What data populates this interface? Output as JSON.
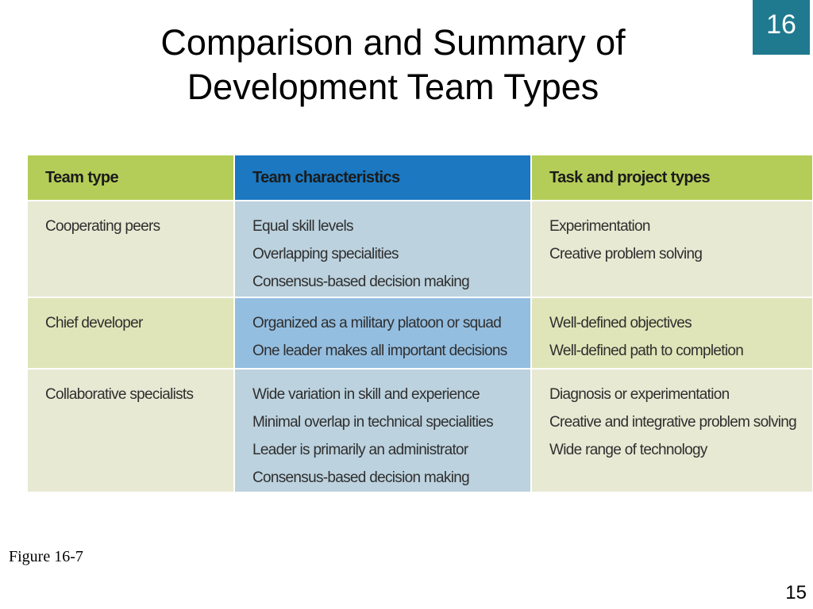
{
  "slide": {
    "chapter_badge": "16",
    "title_line1": "Comparison and Summary of",
    "title_line2": "Development Team Types",
    "figure_caption": "Figure 16-7",
    "page_number": "15"
  },
  "table": {
    "headers": [
      "Team type",
      "Team characteristics",
      "Task and project types"
    ],
    "rows": [
      {
        "team_type": "Cooperating peers",
        "characteristics": [
          "Equal skill levels",
          "Overlapping specialities",
          "Consensus-based decision making"
        ],
        "task_types": [
          "Experimentation",
          "Creative problem solving"
        ]
      },
      {
        "team_type": "Chief developer",
        "characteristics": [
          "Organized as a military platoon or squad",
          "One leader makes all important decisions"
        ],
        "task_types": [
          "Well-defined objectives",
          "Well-defined path to completion"
        ]
      },
      {
        "team_type": "Collaborative specialists",
        "characteristics": [
          "Wide variation in skill and experience",
          "Minimal overlap in technical specialities",
          "Leader is primarily an administrator",
          "Consensus-based decision making"
        ],
        "task_types": [
          "Diagnosis or experimentation",
          "Creative and integrative problem solving",
          "Wide range of technology"
        ]
      }
    ],
    "colors": {
      "header_green": "#b4cd58",
      "header_blue": "#1b78c1",
      "row_side_light": "#e8e9d3",
      "row_mid_light": "#bcd2de",
      "row_side_mid": "#dfe5b8",
      "row_mid_dark": "#94bee0"
    }
  },
  "colors": {
    "badge": "#1f7a8f"
  }
}
